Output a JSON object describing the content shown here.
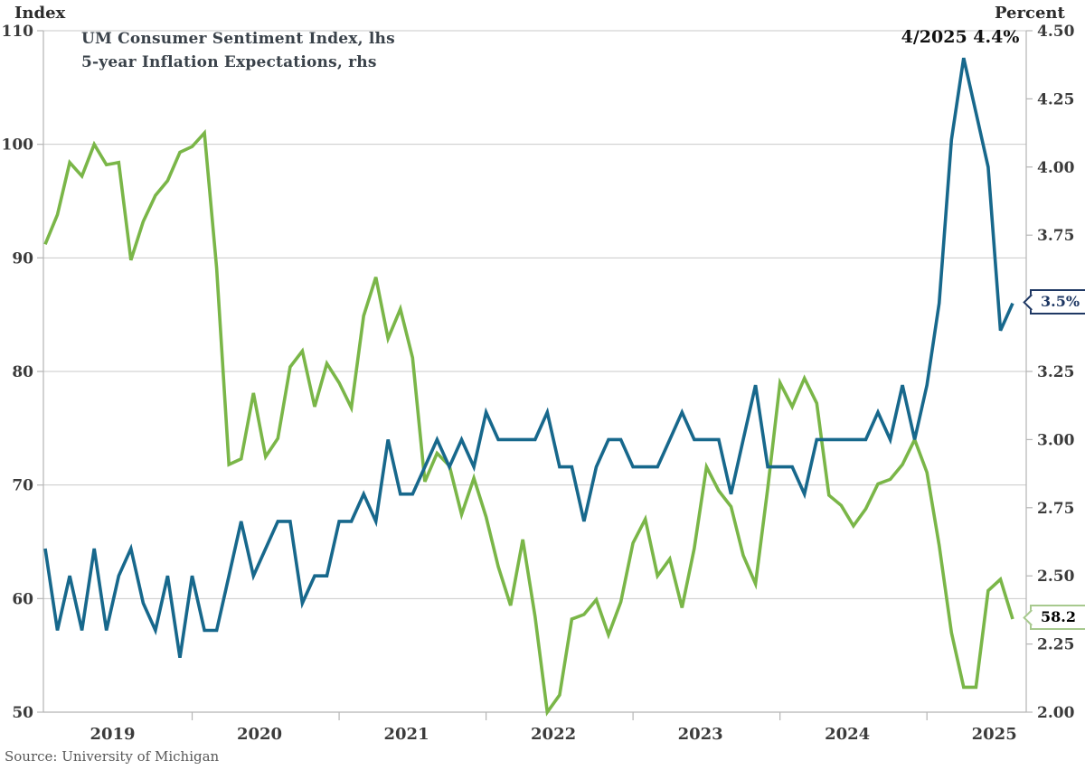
{
  "chart_data": {
    "type": "line",
    "left_axis": {
      "title": "Index",
      "min": 50,
      "max": 110,
      "tick_labels": [
        "110",
        "100",
        "90",
        "80",
        "70",
        "60",
        "50"
      ],
      "tick_values": [
        110,
        100,
        90,
        80,
        70,
        60,
        50
      ],
      "gridlines": true
    },
    "right_axis": {
      "title": "Percent",
      "min": 2.0,
      "max": 4.5,
      "tick_labels": [
        "4.50",
        "4.25",
        "4.00",
        "3.75",
        "3.50",
        "3.25",
        "3.00",
        "2.75",
        "2.50",
        "2.25",
        "2.00"
      ],
      "tick_values": [
        4.5,
        4.25,
        4.0,
        3.75,
        3.5,
        3.25,
        3.0,
        2.75,
        2.5,
        2.25,
        2.0
      ],
      "gridlines": false
    },
    "x_axis": {
      "frequency": "monthly",
      "start": "2019-01",
      "end": "2025-08",
      "year_labels": [
        "2019",
        "2020",
        "2021",
        "2022",
        "2023",
        "2024",
        "2025"
      ]
    },
    "series": [
      {
        "name": "UM Consumer Sentiment Index, lhs",
        "axis": "left",
        "color": "#7ab648",
        "values": [
          91.2,
          93.8,
          98.4,
          97.2,
          100.0,
          98.2,
          98.4,
          89.8,
          93.2,
          95.5,
          96.8,
          99.3,
          99.8,
          101.0,
          89.1,
          71.8,
          72.3,
          78.1,
          72.5,
          74.1,
          80.4,
          81.8,
          76.9,
          80.7,
          79.0,
          76.8,
          84.9,
          88.3,
          82.9,
          85.5,
          81.2,
          70.3,
          72.8,
          71.7,
          67.4,
          70.6,
          67.2,
          62.8,
          59.4,
          65.2,
          58.4,
          50.0,
          51.5,
          58.2,
          58.6,
          59.9,
          56.8,
          59.7,
          64.9,
          67.0,
          62.0,
          63.5,
          59.2,
          64.4,
          71.6,
          69.5,
          68.1,
          63.8,
          61.3,
          69.7,
          79.0,
          76.9,
          79.4,
          77.2,
          69.1,
          68.2,
          66.4,
          67.9,
          70.1,
          70.5,
          71.8,
          74.0,
          71.1,
          64.7,
          57.0,
          52.2,
          52.2,
          60.7,
          61.7,
          58.2
        ]
      },
      {
        "name": "5-year Inflation Expectations, rhs",
        "axis": "right",
        "color": "#17688c",
        "values": [
          2.6,
          2.3,
          2.5,
          2.3,
          2.6,
          2.3,
          2.5,
          2.6,
          2.4,
          2.3,
          2.5,
          2.2,
          2.5,
          2.3,
          2.3,
          2.5,
          2.7,
          2.5,
          2.6,
          2.7,
          2.7,
          2.4,
          2.5,
          2.5,
          2.7,
          2.7,
          2.8,
          2.7,
          3.0,
          2.8,
          2.8,
          2.9,
          3.0,
          2.9,
          3.0,
          2.9,
          3.1,
          3.0,
          3.0,
          3.0,
          3.0,
          3.1,
          2.9,
          2.9,
          2.7,
          2.9,
          3.0,
          3.0,
          2.9,
          2.9,
          2.9,
          3.0,
          3.1,
          3.0,
          3.0,
          3.0,
          2.8,
          3.0,
          3.2,
          2.9,
          2.9,
          2.9,
          2.8,
          3.0,
          3.0,
          3.0,
          3.0,
          3.0,
          3.1,
          3.0,
          3.2,
          3.0,
          3.2,
          3.5,
          4.1,
          4.4,
          4.2,
          4.0,
          3.4,
          3.5
        ]
      }
    ],
    "legend": {
      "position": "top-left",
      "entries": [
        {
          "label": "UM Consumer Sentiment Index, lhs",
          "color": "#7ab648"
        },
        {
          "label": "5-year Inflation Expectations, rhs",
          "color": "#17688c"
        }
      ]
    },
    "annotations": [
      {
        "id": "peak",
        "text": "4/2025 4.4%",
        "refers_to": "5-year Inflation Expectations peak, April 2025"
      }
    ],
    "callouts": [
      {
        "id": "expectations",
        "label": "3.5%",
        "value": 3.5,
        "axis": "right",
        "border_color": "#1f3864"
      },
      {
        "id": "sentiment",
        "label": "58.2",
        "value": 58.2,
        "axis": "left",
        "border_color": "#a7c98e"
      }
    ],
    "colors": {
      "grid": "#c9c9c9",
      "spine": "#b5b5b5",
      "tick_text": "#3b3b3b"
    }
  },
  "source": "Source: University of Michigan"
}
